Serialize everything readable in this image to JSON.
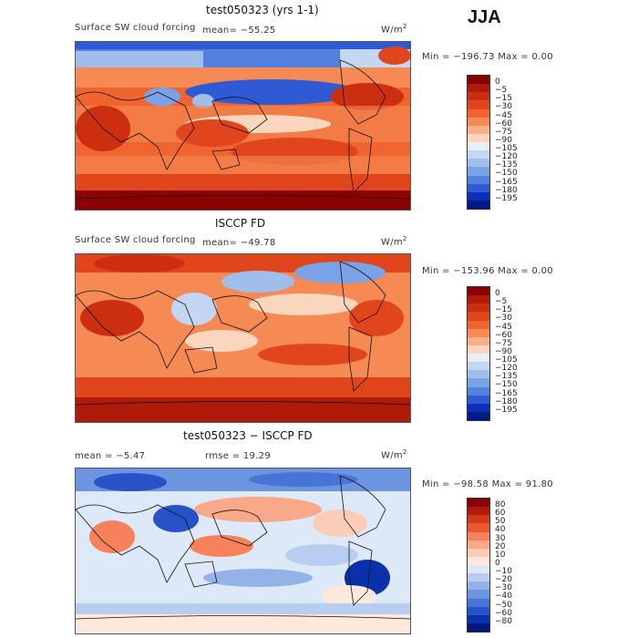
{
  "season": "JJA",
  "panels": [
    {
      "title": "test050323 (yrs 1-1)",
      "variable": "Surface SW cloud forcing",
      "mean": "mean= −55.25",
      "units": "W/m",
      "units_sup": "2",
      "minmax": "Min = −196.73 Max =    0.00",
      "levels": [
        "0",
        "−5",
        "−15",
        "−30",
        "−45",
        "−60",
        "−75",
        "−90",
        "−105",
        "−120",
        "−135",
        "−150",
        "−165",
        "−180",
        "−195"
      ],
      "colors": [
        "#8b0000",
        "#b01a0a",
        "#cc2f10",
        "#e0451c",
        "#f0652f",
        "#f58a55",
        "#f9b08a",
        "#fbd6bf",
        "#e6effa",
        "#c4d7f2",
        "#9fbeec",
        "#7aa2e6",
        "#5480de",
        "#2f5ad4",
        "#0a2fb8",
        "#001a8c"
      ]
    },
    {
      "title": "ISCCP FD",
      "variable": "Surface SW cloud forcing",
      "mean": "mean= −49.78",
      "units": "W/m",
      "units_sup": "2",
      "minmax": "Min = −153.96 Max =    0.00",
      "levels": [
        "0",
        "−5",
        "−15",
        "−30",
        "−45",
        "−60",
        "−75",
        "−90",
        "−105",
        "−120",
        "−135",
        "−150",
        "−165",
        "−180",
        "−195"
      ],
      "colors": [
        "#8b0000",
        "#b01a0a",
        "#cc2f10",
        "#e0451c",
        "#f0652f",
        "#f58a55",
        "#f9b08a",
        "#fbd6bf",
        "#e6effa",
        "#c4d7f2",
        "#9fbeec",
        "#7aa2e6",
        "#5480de",
        "#2f5ad4",
        "#0a2fb8",
        "#001a8c"
      ]
    },
    {
      "title": "test050323 − ISCCP FD",
      "mean": "mean =   −5.47",
      "rmse": "rmse =   19.29",
      "units": "W/m",
      "units_sup": "2",
      "minmax": "Min = −98.58 Max =   91.80",
      "levels": [
        "80",
        "60",
        "50",
        "40",
        "30",
        "20",
        "10",
        "0",
        "−10",
        "−20",
        "−30",
        "−40",
        "−50",
        "−60",
        "−80"
      ],
      "colors": [
        "#8b0000",
        "#b01a0a",
        "#d23a18",
        "#ec5a2c",
        "#f5825a",
        "#f9a888",
        "#fbcdb8",
        "#fde8dc",
        "#dde8f8",
        "#b8cdf0",
        "#93b2e8",
        "#6d94e0",
        "#4874d6",
        "#2852c8",
        "#0a30aa",
        "#001a7a"
      ]
    }
  ]
}
